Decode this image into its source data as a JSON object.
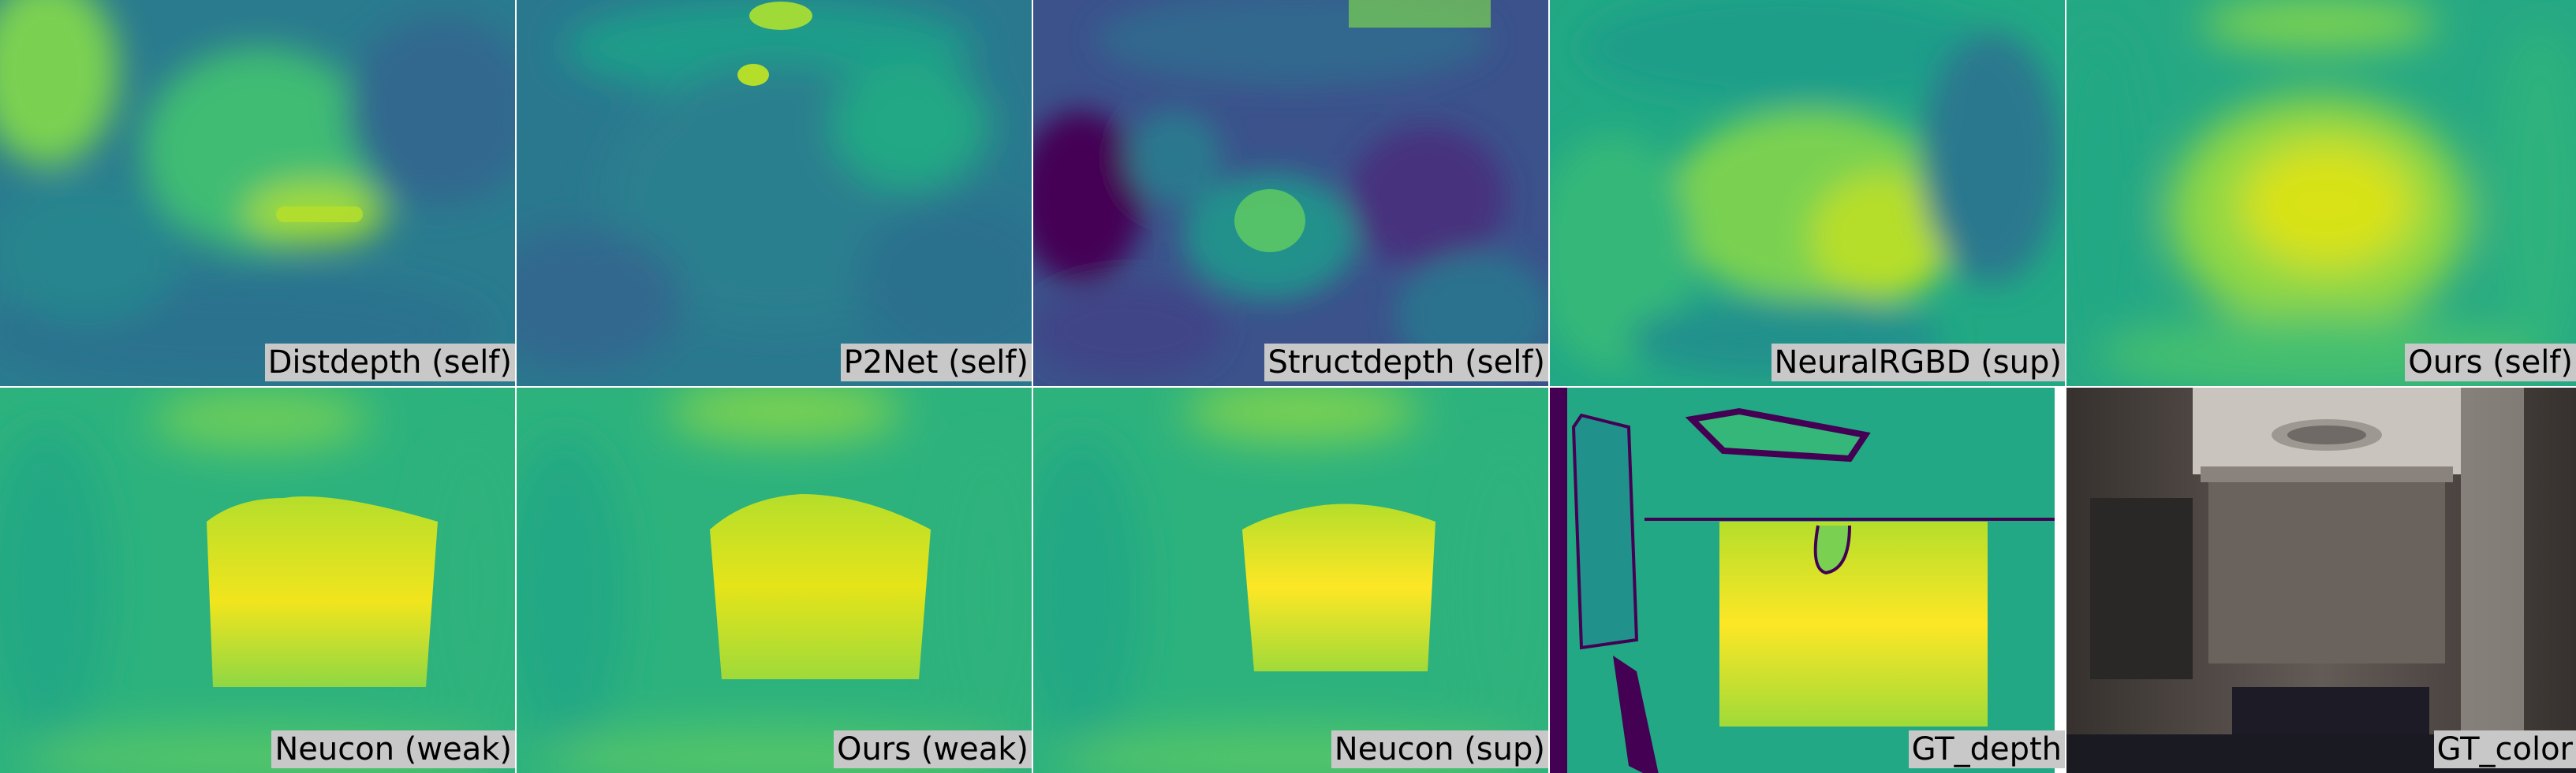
{
  "figure": {
    "panels": [
      {
        "id": "distdepth",
        "label": "Distdepth (self)"
      },
      {
        "id": "p2net",
        "label": "P2Net (self)"
      },
      {
        "id": "structdepth",
        "label": "Structdepth (self)"
      },
      {
        "id": "neuralrgbd",
        "label": "NeuralRGBD (sup)"
      },
      {
        "id": "ours-self",
        "label": "Ours (self)"
      },
      {
        "id": "neucon-weak",
        "label": "Neucon (weak)"
      },
      {
        "id": "ours-weak",
        "label": "Ours (weak)"
      },
      {
        "id": "neucon-sup",
        "label": "Neucon (sup)"
      },
      {
        "id": "gt-depth",
        "label": "GT_depth"
      },
      {
        "id": "gt-color",
        "label": "GT_color"
      }
    ],
    "colormap": "viridis",
    "colors": {
      "dark_purple": "#440154",
      "blue": "#31688e",
      "teal": "#21918c",
      "green": "#5ec962",
      "yellow": "#fde725",
      "label_bg": "#c8c8c8"
    }
  }
}
